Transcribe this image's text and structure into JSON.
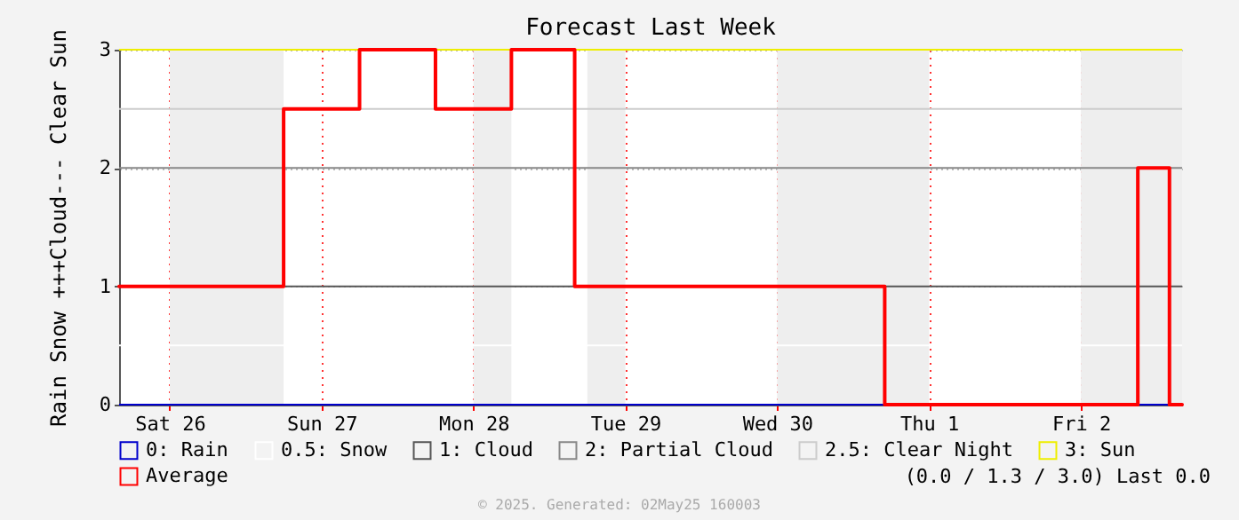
{
  "chart_data": {
    "type": "step",
    "title": "Forecast Last Week",
    "ylabel": "Rain Snow  +++Cloud--- Clear Sun",
    "x": [
      "2025-04-25T16:00",
      "2025-04-26T18:00",
      "2025-04-27T06:00",
      "2025-04-27T18:00",
      "2025-04-28T06:00",
      "2025-04-28T16:00",
      "2025-04-30T17:00",
      "2025-05-02T09:00",
      "2025-05-02T14:00",
      "2025-05-02T16:00"
    ],
    "series": [
      {
        "name": "Average",
        "color": "#ff0000",
        "values": [
          1,
          2.5,
          3,
          2.5,
          3,
          1,
          0,
          2,
          0,
          0
        ]
      }
    ],
    "xlim": [
      "2025-04-25T16:00",
      "2025-05-02T16:00"
    ],
    "xticks": [
      {
        "value": "2025-04-26",
        "label": "Sat 26"
      },
      {
        "value": "2025-04-27",
        "label": "Sun 27"
      },
      {
        "value": "2025-04-28",
        "label": "Mon 28"
      },
      {
        "value": "2025-04-29",
        "label": "Tue 29"
      },
      {
        "value": "2025-04-30",
        "label": "Wed 30"
      },
      {
        "value": "2025-05-01",
        "label": "Thu 1"
      },
      {
        "value": "2025-05-02",
        "label": "Fri 2"
      }
    ],
    "ylim": [
      0,
      3
    ],
    "yticks": [
      0,
      1,
      2,
      3
    ],
    "ref_lines": [
      {
        "axis": "y",
        "value": 0,
        "label": "0: Rain",
        "color": "#0000cc"
      },
      {
        "axis": "y",
        "value": 0.5,
        "label": "0.5: Snow",
        "color": "#ffffff"
      },
      {
        "axis": "y",
        "value": 1,
        "label": "1: Cloud",
        "color": "#555555"
      },
      {
        "axis": "y",
        "value": 2,
        "label": "2: Partial Cloud",
        "color": "#888888"
      },
      {
        "axis": "y",
        "value": 2.5,
        "label": "2.5: Clear Night",
        "color": "#cccccc"
      },
      {
        "axis": "y",
        "value": 3,
        "label": "3: Sun",
        "color": "#eeee00"
      }
    ],
    "bands": [
      {
        "axis": "x",
        "from": "2025-04-26T00:00",
        "to": "2025-04-26T18:00",
        "color": "#eeeeee"
      },
      {
        "axis": "x",
        "from": "2025-04-28T00:00",
        "to": "2025-04-28T06:00",
        "color": "#eeeeee"
      },
      {
        "axis": "x",
        "from": "2025-04-28T18:00",
        "to": "2025-04-29T00:00",
        "color": "#eeeeee"
      },
      {
        "axis": "x",
        "from": "2025-04-30T00:00",
        "to": "2025-05-01T00:00",
        "color": "#eeeeee"
      },
      {
        "axis": "x",
        "from": "2025-05-02T00:00",
        "to": "2025-05-02T16:00",
        "color": "#eeeeee"
      }
    ],
    "grid": true,
    "legend": "bottom",
    "annotations": [
      "(0.0 / 1.3 / 3.0) Last 0.0",
      "© 2025. Generated: 02May25 160003"
    ]
  }
}
